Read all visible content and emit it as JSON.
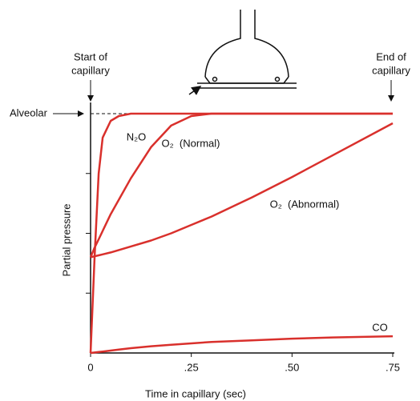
{
  "chart_data": {
    "type": "line",
    "x_label": "Time in capillary (sec)",
    "y_label": "Partial pressure",
    "start_label": [
      "Start of",
      "capillary"
    ],
    "end_label": [
      "End of",
      "capillary"
    ],
    "alveolar_label": "Alveolar",
    "alveolar_level": 100,
    "x": [
      0,
      0.01,
      0.02,
      0.03,
      0.05,
      0.07,
      0.1,
      0.15,
      0.2,
      0.25,
      0.3,
      0.4,
      0.5,
      0.6,
      0.75
    ],
    "series": [
      {
        "name": "N₂O",
        "color": "#d9302c",
        "values": [
          0,
          40,
          75,
          90,
          97,
          99,
          100,
          100,
          100,
          100,
          100,
          100,
          100,
          100,
          100
        ]
      },
      {
        "name": "O₂  (Normal)",
        "color": "#d9302c",
        "values": [
          40,
          44,
          47.5,
          51,
          58,
          64,
          73,
          86,
          95,
          99,
          100,
          100,
          100,
          100,
          100
        ]
      },
      {
        "name": "O₂  (Abnormal)",
        "color": "#d9302c",
        "values": [
          40,
          40.4,
          40.8,
          41.2,
          42,
          43,
          44.5,
          47,
          50,
          53.5,
          57,
          65,
          73.5,
          82.5,
          96
        ]
      },
      {
        "name": "CO",
        "color": "#d9302c",
        "values": [
          0,
          0.2,
          0.4,
          0.6,
          1,
          1.4,
          2,
          2.8,
          3.4,
          4,
          4.6,
          5.3,
          6,
          6.5,
          7
        ]
      }
    ],
    "xlim": [
      0,
      0.75
    ],
    "ylim": [
      0,
      100
    ],
    "xticks": [
      0,
      {
        "value": 0.25,
        "label": ".25"
      },
      {
        "value": 0.5,
        "label": ".50"
      },
      {
        "value": 0.75,
        "label": ".75"
      }
    ],
    "yticks": [
      25,
      50,
      75
    ]
  }
}
